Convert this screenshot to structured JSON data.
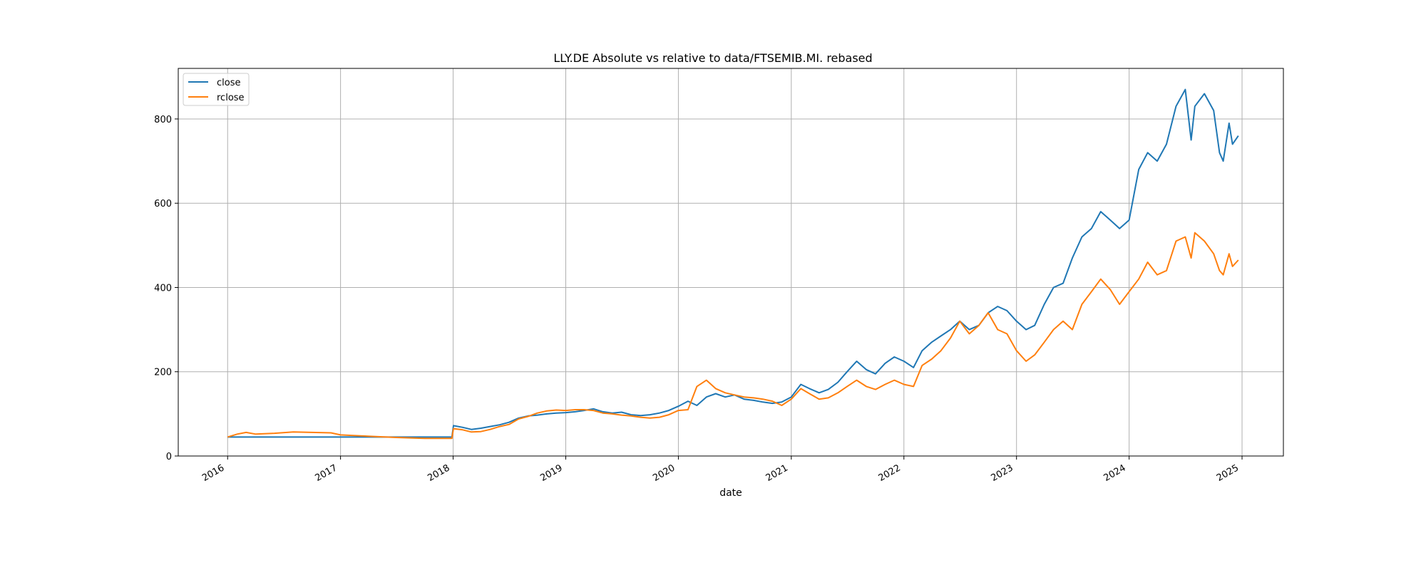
{
  "chart_data": {
    "type": "line",
    "title": "LLY.DE Absolute vs relative to data/FTSEMIB.MI. rebased",
    "xlabel": "date",
    "ylabel": "",
    "xlim": [
      "2015-07-25",
      "2025-05-15"
    ],
    "ylim": [
      0,
      920
    ],
    "x_ticks": [
      "2016",
      "2017",
      "2018",
      "2019",
      "2020",
      "2021",
      "2022",
      "2023",
      "2024",
      "2025"
    ],
    "y_ticks": [
      0,
      200,
      400,
      600,
      800
    ],
    "grid": true,
    "legend_position": "top-left",
    "series": [
      {
        "name": "close",
        "color": "#1f77b4",
        "points": [
          [
            "2016-01-01",
            45
          ],
          [
            "2016-06-01",
            45
          ],
          [
            "2017-01-01",
            45
          ],
          [
            "2017-06-01",
            45
          ],
          [
            "2017-12-28",
            45
          ],
          [
            "2018-01-02",
            72
          ],
          [
            "2018-02-01",
            68
          ],
          [
            "2018-03-01",
            63
          ],
          [
            "2018-04-01",
            66
          ],
          [
            "2018-05-01",
            70
          ],
          [
            "2018-06-01",
            74
          ],
          [
            "2018-07-01",
            80
          ],
          [
            "2018-08-01",
            90
          ],
          [
            "2018-09-01",
            95
          ],
          [
            "2018-10-01",
            97
          ],
          [
            "2018-11-01",
            100
          ],
          [
            "2018-12-01",
            102
          ],
          [
            "2019-01-01",
            103
          ],
          [
            "2019-02-01",
            105
          ],
          [
            "2019-03-01",
            108
          ],
          [
            "2019-04-01",
            112
          ],
          [
            "2019-05-01",
            105
          ],
          [
            "2019-06-01",
            102
          ],
          [
            "2019-07-01",
            104
          ],
          [
            "2019-08-01",
            98
          ],
          [
            "2019-09-01",
            96
          ],
          [
            "2019-10-01",
            98
          ],
          [
            "2019-11-01",
            102
          ],
          [
            "2019-12-01",
            108
          ],
          [
            "2020-01-01",
            118
          ],
          [
            "2020-02-01",
            130
          ],
          [
            "2020-03-01",
            120
          ],
          [
            "2020-04-01",
            140
          ],
          [
            "2020-05-01",
            148
          ],
          [
            "2020-06-01",
            140
          ],
          [
            "2020-07-01",
            145
          ],
          [
            "2020-08-01",
            135
          ],
          [
            "2020-09-01",
            132
          ],
          [
            "2020-10-01",
            128
          ],
          [
            "2020-11-01",
            125
          ],
          [
            "2020-12-01",
            128
          ],
          [
            "2021-01-01",
            140
          ],
          [
            "2021-02-01",
            170
          ],
          [
            "2021-03-01",
            160
          ],
          [
            "2021-04-01",
            150
          ],
          [
            "2021-05-01",
            158
          ],
          [
            "2021-06-01",
            175
          ],
          [
            "2021-07-01",
            200
          ],
          [
            "2021-08-01",
            225
          ],
          [
            "2021-09-01",
            205
          ],
          [
            "2021-10-01",
            195
          ],
          [
            "2021-11-01",
            220
          ],
          [
            "2021-12-01",
            235
          ],
          [
            "2022-01-01",
            225
          ],
          [
            "2022-02-01",
            210
          ],
          [
            "2022-03-01",
            250
          ],
          [
            "2022-04-01",
            270
          ],
          [
            "2022-05-01",
            285
          ],
          [
            "2022-06-01",
            300
          ],
          [
            "2022-07-01",
            320
          ],
          [
            "2022-08-01",
            300
          ],
          [
            "2022-09-01",
            310
          ],
          [
            "2022-10-01",
            340
          ],
          [
            "2022-11-01",
            355
          ],
          [
            "2022-12-01",
            345
          ],
          [
            "2023-01-01",
            320
          ],
          [
            "2023-02-01",
            300
          ],
          [
            "2023-03-01",
            310
          ],
          [
            "2023-04-01",
            360
          ],
          [
            "2023-05-01",
            400
          ],
          [
            "2023-06-01",
            410
          ],
          [
            "2023-07-01",
            470
          ],
          [
            "2023-08-01",
            520
          ],
          [
            "2023-09-01",
            540
          ],
          [
            "2023-10-01",
            580
          ],
          [
            "2023-11-01",
            560
          ],
          [
            "2023-12-01",
            540
          ],
          [
            "2024-01-01",
            560
          ],
          [
            "2024-02-01",
            680
          ],
          [
            "2024-03-01",
            720
          ],
          [
            "2024-04-01",
            700
          ],
          [
            "2024-05-01",
            740
          ],
          [
            "2024-06-01",
            830
          ],
          [
            "2024-07-01",
            870
          ],
          [
            "2024-07-20",
            750
          ],
          [
            "2024-08-01",
            830
          ],
          [
            "2024-09-01",
            860
          ],
          [
            "2024-10-01",
            820
          ],
          [
            "2024-10-20",
            720
          ],
          [
            "2024-11-01",
            700
          ],
          [
            "2024-11-20",
            790
          ],
          [
            "2024-12-01",
            740
          ],
          [
            "2024-12-20",
            760
          ]
        ]
      },
      {
        "name": "rclose",
        "color": "#ff7f0e",
        "points": [
          [
            "2016-01-01",
            45
          ],
          [
            "2016-02-01",
            52
          ],
          [
            "2016-03-01",
            56
          ],
          [
            "2016-04-01",
            52
          ],
          [
            "2016-06-01",
            54
          ],
          [
            "2016-08-01",
            57
          ],
          [
            "2016-10-01",
            56
          ],
          [
            "2016-12-01",
            55
          ],
          [
            "2017-01-01",
            50
          ],
          [
            "2017-04-01",
            47
          ],
          [
            "2017-07-01",
            44
          ],
          [
            "2017-10-01",
            42
          ],
          [
            "2017-12-28",
            42
          ],
          [
            "2018-01-02",
            65
          ],
          [
            "2018-02-01",
            62
          ],
          [
            "2018-03-01",
            57
          ],
          [
            "2018-04-01",
            58
          ],
          [
            "2018-05-01",
            63
          ],
          [
            "2018-06-01",
            70
          ],
          [
            "2018-07-01",
            75
          ],
          [
            "2018-08-01",
            88
          ],
          [
            "2018-09-01",
            94
          ],
          [
            "2018-10-01",
            102
          ],
          [
            "2018-11-01",
            107
          ],
          [
            "2018-12-01",
            109
          ],
          [
            "2019-01-01",
            108
          ],
          [
            "2019-02-01",
            110
          ],
          [
            "2019-03-01",
            110
          ],
          [
            "2019-04-01",
            108
          ],
          [
            "2019-05-01",
            102
          ],
          [
            "2019-06-01",
            100
          ],
          [
            "2019-07-01",
            97
          ],
          [
            "2019-08-01",
            95
          ],
          [
            "2019-09-01",
            92
          ],
          [
            "2019-10-01",
            90
          ],
          [
            "2019-11-01",
            92
          ],
          [
            "2019-12-01",
            98
          ],
          [
            "2020-01-01",
            108
          ],
          [
            "2020-02-01",
            110
          ],
          [
            "2020-03-01",
            165
          ],
          [
            "2020-04-01",
            180
          ],
          [
            "2020-05-01",
            160
          ],
          [
            "2020-06-01",
            150
          ],
          [
            "2020-07-01",
            145
          ],
          [
            "2020-08-01",
            140
          ],
          [
            "2020-09-01",
            138
          ],
          [
            "2020-10-01",
            135
          ],
          [
            "2020-11-01",
            130
          ],
          [
            "2020-12-01",
            120
          ],
          [
            "2021-01-01",
            135
          ],
          [
            "2021-02-01",
            160
          ],
          [
            "2021-03-01",
            148
          ],
          [
            "2021-04-01",
            135
          ],
          [
            "2021-05-01",
            138
          ],
          [
            "2021-06-01",
            150
          ],
          [
            "2021-07-01",
            165
          ],
          [
            "2021-08-01",
            180
          ],
          [
            "2021-09-01",
            165
          ],
          [
            "2021-10-01",
            158
          ],
          [
            "2021-11-01",
            170
          ],
          [
            "2021-12-01",
            180
          ],
          [
            "2022-01-01",
            170
          ],
          [
            "2022-02-01",
            165
          ],
          [
            "2022-03-01",
            215
          ],
          [
            "2022-04-01",
            230
          ],
          [
            "2022-05-01",
            250
          ],
          [
            "2022-06-01",
            280
          ],
          [
            "2022-07-01",
            320
          ],
          [
            "2022-08-01",
            290
          ],
          [
            "2022-09-01",
            310
          ],
          [
            "2022-10-01",
            340
          ],
          [
            "2022-11-01",
            300
          ],
          [
            "2022-12-01",
            290
          ],
          [
            "2023-01-01",
            250
          ],
          [
            "2023-02-01",
            225
          ],
          [
            "2023-03-01",
            240
          ],
          [
            "2023-04-01",
            270
          ],
          [
            "2023-05-01",
            300
          ],
          [
            "2023-06-01",
            320
          ],
          [
            "2023-07-01",
            300
          ],
          [
            "2023-08-01",
            360
          ],
          [
            "2023-09-01",
            390
          ],
          [
            "2023-10-01",
            420
          ],
          [
            "2023-11-01",
            395
          ],
          [
            "2023-12-01",
            360
          ],
          [
            "2024-01-01",
            390
          ],
          [
            "2024-02-01",
            420
          ],
          [
            "2024-03-01",
            460
          ],
          [
            "2024-04-01",
            430
          ],
          [
            "2024-05-01",
            440
          ],
          [
            "2024-06-01",
            510
          ],
          [
            "2024-07-01",
            520
          ],
          [
            "2024-07-20",
            470
          ],
          [
            "2024-08-01",
            530
          ],
          [
            "2024-09-01",
            510
          ],
          [
            "2024-10-01",
            480
          ],
          [
            "2024-10-20",
            440
          ],
          [
            "2024-11-01",
            430
          ],
          [
            "2024-11-20",
            480
          ],
          [
            "2024-12-01",
            450
          ],
          [
            "2024-12-20",
            465
          ]
        ]
      }
    ]
  }
}
